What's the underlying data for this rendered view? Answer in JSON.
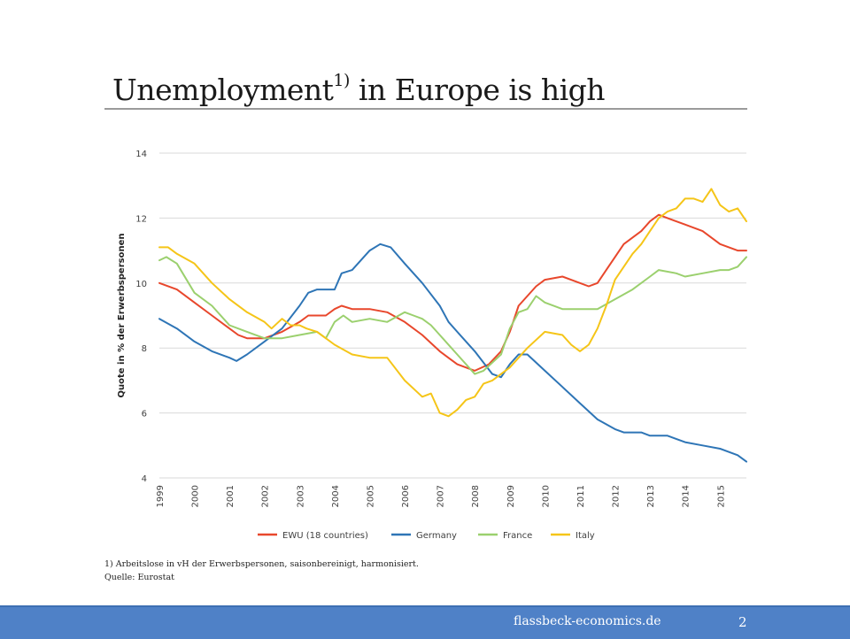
{
  "title": {
    "main": "Unemployment",
    "sup": "1)",
    "rest": " in Europe is high"
  },
  "footnote": {
    "line1": "1) Arbeitslose in vH der Erwerbspersonen, saisonbereinigt, harmonisiert.",
    "line2": "Quelle: Eurostat"
  },
  "footer": {
    "site": "flassbeck-economics.de",
    "page": "2"
  },
  "chart_data": {
    "type": "line",
    "ylabel": "Quote in % der Erwerbspersonen",
    "ylim": [
      4,
      14
    ],
    "yticks": [
      4,
      6,
      8,
      10,
      12,
      14
    ],
    "xlim": [
      1999,
      2015.75
    ],
    "xticks": [
      "1999",
      "2000",
      "2001",
      "2002",
      "2003",
      "2004",
      "2005",
      "2006",
      "2007",
      "2008",
      "2009",
      "2010",
      "2011",
      "2012",
      "2013",
      "2014",
      "2015"
    ],
    "grid": true,
    "legend_position": "bottom",
    "series": [
      {
        "name": "EWU (18 countries)",
        "color": "#e8472c",
        "points": [
          [
            1999,
            10.0
          ],
          [
            1999.5,
            9.8
          ],
          [
            2000,
            9.4
          ],
          [
            2000.5,
            9.0
          ],
          [
            2001,
            8.6
          ],
          [
            2001.25,
            8.4
          ],
          [
            2001.5,
            8.3
          ],
          [
            2002,
            8.3
          ],
          [
            2002.5,
            8.5
          ],
          [
            2003,
            8.8
          ],
          [
            2003.25,
            9.0
          ],
          [
            2003.75,
            9.0
          ],
          [
            2004,
            9.2
          ],
          [
            2004.2,
            9.3
          ],
          [
            2004.5,
            9.2
          ],
          [
            2005,
            9.2
          ],
          [
            2005.5,
            9.1
          ],
          [
            2006,
            8.8
          ],
          [
            2006.5,
            8.4
          ],
          [
            2007,
            7.9
          ],
          [
            2007.5,
            7.5
          ],
          [
            2008,
            7.3
          ],
          [
            2008.4,
            7.5
          ],
          [
            2008.75,
            7.9
          ],
          [
            2009,
            8.5
          ],
          [
            2009.25,
            9.3
          ],
          [
            2009.75,
            9.9
          ],
          [
            2010,
            10.1
          ],
          [
            2010.5,
            10.2
          ],
          [
            2011,
            10.0
          ],
          [
            2011.25,
            9.9
          ],
          [
            2011.5,
            10.0
          ],
          [
            2011.75,
            10.4
          ],
          [
            2012,
            10.8
          ],
          [
            2012.25,
            11.2
          ],
          [
            2012.75,
            11.6
          ],
          [
            2013,
            11.9
          ],
          [
            2013.25,
            12.1
          ],
          [
            2013.5,
            12.0
          ],
          [
            2014,
            11.8
          ],
          [
            2014.5,
            11.6
          ],
          [
            2015,
            11.2
          ],
          [
            2015.5,
            11.0
          ],
          [
            2015.75,
            11.0
          ]
        ]
      },
      {
        "name": "Germany",
        "color": "#2e75b6",
        "points": [
          [
            1999,
            8.9
          ],
          [
            1999.5,
            8.6
          ],
          [
            2000,
            8.2
          ],
          [
            2000.5,
            7.9
          ],
          [
            2001,
            7.7
          ],
          [
            2001.2,
            7.6
          ],
          [
            2001.5,
            7.8
          ],
          [
            2002,
            8.2
          ],
          [
            2002.5,
            8.6
          ],
          [
            2003,
            9.3
          ],
          [
            2003.25,
            9.7
          ],
          [
            2003.5,
            9.8
          ],
          [
            2004,
            9.8
          ],
          [
            2004.2,
            10.3
          ],
          [
            2004.5,
            10.4
          ],
          [
            2004.75,
            10.7
          ],
          [
            2005,
            11.0
          ],
          [
            2005.3,
            11.2
          ],
          [
            2005.6,
            11.1
          ],
          [
            2006,
            10.6
          ],
          [
            2006.5,
            10.0
          ],
          [
            2007,
            9.3
          ],
          [
            2007.25,
            8.8
          ],
          [
            2007.5,
            8.5
          ],
          [
            2008,
            7.9
          ],
          [
            2008.5,
            7.2
          ],
          [
            2008.75,
            7.1
          ],
          [
            2009,
            7.5
          ],
          [
            2009.25,
            7.8
          ],
          [
            2009.5,
            7.8
          ],
          [
            2010,
            7.3
          ],
          [
            2010.5,
            6.8
          ],
          [
            2011,
            6.3
          ],
          [
            2011.5,
            5.8
          ],
          [
            2012,
            5.5
          ],
          [
            2012.25,
            5.4
          ],
          [
            2012.75,
            5.4
          ],
          [
            2013,
            5.3
          ],
          [
            2013.5,
            5.3
          ],
          [
            2014,
            5.1
          ],
          [
            2014.5,
            5.0
          ],
          [
            2015,
            4.9
          ],
          [
            2015.5,
            4.7
          ],
          [
            2015.75,
            4.5
          ]
        ]
      },
      {
        "name": "France",
        "color": "#9bd06e",
        "points": [
          [
            1999,
            10.7
          ],
          [
            1999.2,
            10.8
          ],
          [
            1999.5,
            10.6
          ],
          [
            2000,
            9.7
          ],
          [
            2000.5,
            9.3
          ],
          [
            2001,
            8.7
          ],
          [
            2001.5,
            8.5
          ],
          [
            2002,
            8.3
          ],
          [
            2002.5,
            8.3
          ],
          [
            2003,
            8.4
          ],
          [
            2003.5,
            8.5
          ],
          [
            2003.75,
            8.3
          ],
          [
            2004,
            8.8
          ],
          [
            2004.25,
            9.0
          ],
          [
            2004.5,
            8.8
          ],
          [
            2005,
            8.9
          ],
          [
            2005.5,
            8.8
          ],
          [
            2006,
            9.1
          ],
          [
            2006.25,
            9.0
          ],
          [
            2006.5,
            8.9
          ],
          [
            2006.75,
            8.7
          ],
          [
            2007,
            8.4
          ],
          [
            2007.5,
            7.8
          ],
          [
            2008,
            7.2
          ],
          [
            2008.25,
            7.3
          ],
          [
            2008.75,
            7.8
          ],
          [
            2009,
            8.6
          ],
          [
            2009.25,
            9.1
          ],
          [
            2009.5,
            9.2
          ],
          [
            2009.75,
            9.6
          ],
          [
            2010,
            9.4
          ],
          [
            2010.5,
            9.2
          ],
          [
            2011,
            9.2
          ],
          [
            2011.5,
            9.2
          ],
          [
            2012,
            9.5
          ],
          [
            2012.5,
            9.8
          ],
          [
            2013,
            10.2
          ],
          [
            2013.25,
            10.4
          ],
          [
            2013.75,
            10.3
          ],
          [
            2014,
            10.2
          ],
          [
            2014.5,
            10.3
          ],
          [
            2015,
            10.4
          ],
          [
            2015.25,
            10.4
          ],
          [
            2015.5,
            10.5
          ],
          [
            2015.75,
            10.8
          ]
        ]
      },
      {
        "name": "Italy",
        "color": "#f5c518",
        "points": [
          [
            1999,
            11.1
          ],
          [
            1999.25,
            11.1
          ],
          [
            1999.5,
            10.9
          ],
          [
            2000,
            10.6
          ],
          [
            2000.5,
            10.0
          ],
          [
            2001,
            9.5
          ],
          [
            2001.5,
            9.1
          ],
          [
            2002,
            8.8
          ],
          [
            2002.2,
            8.6
          ],
          [
            2002.5,
            8.9
          ],
          [
            2002.75,
            8.7
          ],
          [
            2003,
            8.7
          ],
          [
            2003.2,
            8.6
          ],
          [
            2003.5,
            8.5
          ],
          [
            2004,
            8.1
          ],
          [
            2004.5,
            7.8
          ],
          [
            2005,
            7.7
          ],
          [
            2005.5,
            7.7
          ],
          [
            2006,
            7.0
          ],
          [
            2006.5,
            6.5
          ],
          [
            2006.75,
            6.6
          ],
          [
            2007,
            6.0
          ],
          [
            2007.25,
            5.9
          ],
          [
            2007.5,
            6.1
          ],
          [
            2007.75,
            6.4
          ],
          [
            2008,
            6.5
          ],
          [
            2008.25,
            6.9
          ],
          [
            2008.5,
            7.0
          ],
          [
            2008.75,
            7.2
          ],
          [
            2009,
            7.4
          ],
          [
            2009.5,
            8.0
          ],
          [
            2010,
            8.5
          ],
          [
            2010.5,
            8.4
          ],
          [
            2010.75,
            8.1
          ],
          [
            2011,
            7.9
          ],
          [
            2011.25,
            8.1
          ],
          [
            2011.5,
            8.6
          ],
          [
            2011.75,
            9.3
          ],
          [
            2012,
            10.1
          ],
          [
            2012.25,
            10.5
          ],
          [
            2012.5,
            10.9
          ],
          [
            2012.75,
            11.2
          ],
          [
            2013,
            11.6
          ],
          [
            2013.25,
            12.0
          ],
          [
            2013.5,
            12.2
          ],
          [
            2013.75,
            12.3
          ],
          [
            2014,
            12.6
          ],
          [
            2014.25,
            12.6
          ],
          [
            2014.5,
            12.5
          ],
          [
            2014.75,
            12.9
          ],
          [
            2015,
            12.4
          ],
          [
            2015.25,
            12.2
          ],
          [
            2015.5,
            12.3
          ],
          [
            2015.75,
            11.9
          ]
        ]
      }
    ]
  }
}
